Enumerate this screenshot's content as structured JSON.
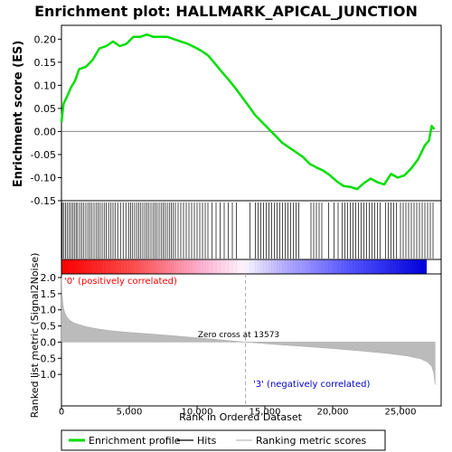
{
  "chart_data": {
    "type": "line",
    "title": "Enrichment plot: HALLMARK_APICAL_JUNCTION",
    "xlabel": "Rank in Ordered Dataset",
    "ylabel_top": "Enrichment score (ES)",
    "ylabel_bottom": "Ranked list metric (Signal2Noise)",
    "x_ticks": [
      0,
      5000,
      10000,
      15000,
      20000,
      25000
    ],
    "x_tick_labels": [
      "0",
      "5,000",
      "10,000",
      "15,000",
      "20,000",
      "25,000"
    ],
    "xlim": [
      0,
      28000
    ],
    "es_ylim": [
      -0.15,
      0.23
    ],
    "es_ticks": [
      -0.15,
      -0.1,
      -0.05,
      0.0,
      0.05,
      0.1,
      0.15,
      0.2
    ],
    "es_tick_labels": [
      "-0.15",
      "-0.10",
      "-0.05",
      "0.00",
      "0.05",
      "0.10",
      "0.15",
      "0.20"
    ],
    "metric_ylim": [
      -1.5,
      2.0
    ],
    "metric_ticks": [
      -1.0,
      -0.5,
      0.0,
      0.5,
      1.0,
      1.5,
      2.0
    ],
    "metric_tick_labels": [
      "-1.0",
      "-0.5",
      "0.0",
      "0.5",
      "1.0",
      "1.5",
      "2.0"
    ],
    "enrichment_profile": {
      "name": "Enrichment profile",
      "color": "#00dd00",
      "x": [
        0,
        150,
        400,
        700,
        1000,
        1300,
        1800,
        2300,
        2800,
        3300,
        3800,
        4300,
        4800,
        5300,
        5800,
        6300,
        6800,
        7300,
        7800,
        8300,
        8800,
        9300,
        9800,
        10300,
        10800,
        11300,
        11800,
        12300,
        12800,
        13300,
        13800,
        14300,
        14800,
        15300,
        15800,
        16300,
        16800,
        17300,
        17800,
        18300,
        18800,
        19300,
        19800,
        20300,
        20800,
        21300,
        21800,
        22300,
        22800,
        23300,
        23800,
        24300,
        24800,
        25300,
        25800,
        26300,
        26800,
        27100,
        27300,
        27500
      ],
      "y": [
        0.02,
        0.06,
        0.075,
        0.095,
        0.11,
        0.135,
        0.14,
        0.155,
        0.18,
        0.185,
        0.195,
        0.185,
        0.19,
        0.205,
        0.205,
        0.21,
        0.205,
        0.205,
        0.205,
        0.2,
        0.195,
        0.19,
        0.183,
        0.175,
        0.165,
        0.148,
        0.13,
        0.113,
        0.095,
        0.075,
        0.055,
        0.035,
        0.02,
        0.005,
        -0.01,
        -0.025,
        -0.035,
        -0.045,
        -0.055,
        -0.07,
        -0.078,
        -0.085,
        -0.095,
        -0.108,
        -0.118,
        -0.12,
        -0.125,
        -0.112,
        -0.102,
        -0.11,
        -0.115,
        -0.092,
        -0.1,
        -0.095,
        -0.08,
        -0.06,
        -0.03,
        -0.02,
        0.012,
        0.005
      ]
    },
    "hits": {
      "name": "Hits",
      "color": "#000000",
      "ranks": [
        60,
        180,
        300,
        420,
        560,
        700,
        830,
        950,
        1080,
        1200,
        1350,
        1500,
        1650,
        1800,
        1950,
        2100,
        2250,
        2400,
        2550,
        2700,
        2850,
        3000,
        3150,
        3300,
        3480,
        3650,
        3800,
        3950,
        4150,
        4350,
        4550,
        4750,
        4950,
        5100,
        5250,
        5400,
        5550,
        5700,
        5850,
        6000,
        6150,
        6300,
        6450,
        6600,
        6750,
        6900,
        7050,
        7200,
        7350,
        7500,
        7650,
        7800,
        7950,
        8100,
        8250,
        8400,
        8600,
        8800,
        9000,
        9200,
        9400,
        9600,
        9800,
        10000,
        10200,
        10400,
        10600,
        10800,
        11100,
        11400,
        11700,
        12000,
        12300,
        12600,
        12900,
        13900,
        14300,
        14500,
        14700,
        14900,
        15100,
        15300,
        15500,
        15700,
        15900,
        16100,
        16300,
        16500,
        16700,
        16900,
        17100,
        17300,
        17500,
        18400,
        18600,
        18800,
        19000,
        19200,
        19700,
        20100,
        20400,
        20700,
        20900,
        21100,
        21300,
        21500,
        21700,
        21900,
        22100,
        22300,
        22500,
        22700,
        22900,
        23100,
        23300,
        23500,
        23900,
        24100,
        24300,
        24500,
        24700,
        25000,
        25200,
        25400,
        25600,
        25800,
        26000,
        26200,
        26400,
        26600,
        26800,
        27000,
        27200,
        27400
      ]
    },
    "ranking_metric": {
      "name": "Ranking metric scores",
      "color": "#bbbbbb",
      "x": [
        0,
        30,
        80,
        150,
        250,
        400,
        600,
        900,
        1300,
        1800,
        2500,
        3500,
        5000,
        7000,
        9000,
        11000,
        13573,
        16000,
        18000,
        20000,
        22000,
        24000,
        25500,
        26500,
        27000,
        27300,
        27450,
        27550
      ],
      "y": [
        2.0,
        1.6,
        1.3,
        1.05,
        0.9,
        0.78,
        0.68,
        0.6,
        0.54,
        0.48,
        0.42,
        0.36,
        0.3,
        0.24,
        0.17,
        0.1,
        0.0,
        -0.08,
        -0.14,
        -0.2,
        -0.27,
        -0.35,
        -0.43,
        -0.52,
        -0.62,
        -0.75,
        -0.95,
        -1.32
      ]
    },
    "zero_cross_rank": 13573,
    "zero_cross_label": "Zero cross at 13573",
    "pos_label": "'0' (positively correlated)",
    "neg_label": "'3' (negatively correlated)",
    "colors": {
      "pos_heat": "#ff0000",
      "neg_heat": "#0000ee",
      "neutral_heat": "#ffffff",
      "pos_text": "#ff0000",
      "neg_text": "#0000cc",
      "zero_line": "#bbbbbb"
    },
    "legend": {
      "placement": "bottom",
      "entries": [
        {
          "label": "Enrichment profile",
          "color": "#00dd00",
          "kind": "line-thick"
        },
        {
          "label": "Hits",
          "color": "#000000",
          "kind": "line"
        },
        {
          "label": "Ranking metric scores",
          "color": "#bbbbbb",
          "kind": "line"
        }
      ]
    }
  }
}
